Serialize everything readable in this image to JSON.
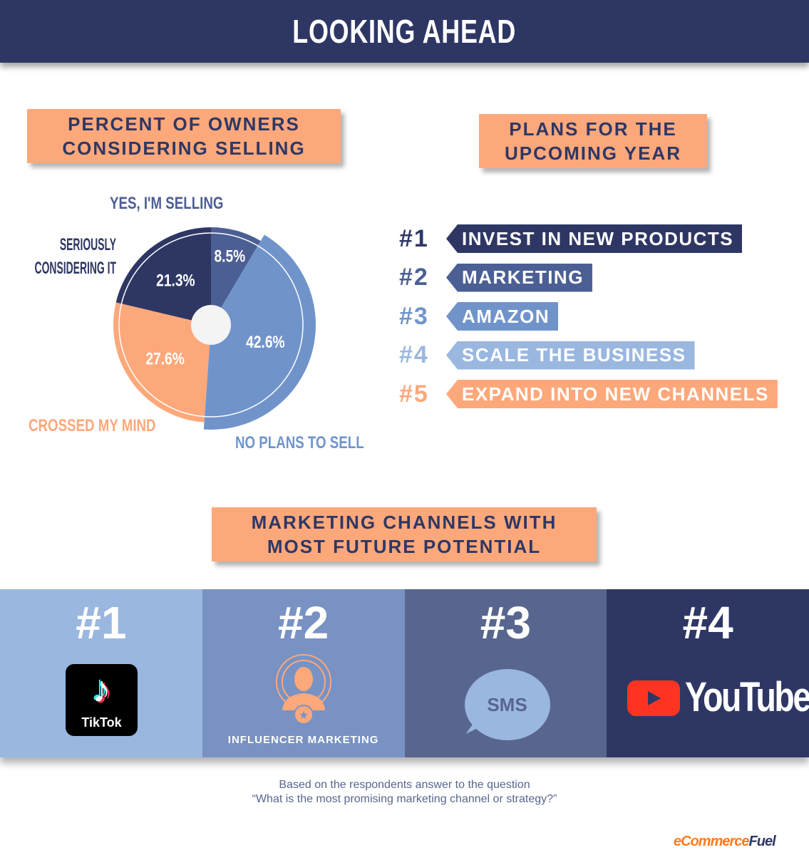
{
  "header": {
    "title": "LOOKING AHEAD"
  },
  "sections": {
    "owners_selling": "PERCENT OF OWNERS CONSIDERING SELLING",
    "plans": "PLANS FOR THE UPCOMING YEAR",
    "channels": "MARKETING CHANNELS WITH MOST FUTURE POTENTIAL"
  },
  "chart_data": {
    "type": "pie",
    "title": "PERCENT OF OWNERS CONSIDERING SELLING",
    "start": "12 o'clock, clockwise",
    "slices": [
      {
        "label": "YES, I'M SELLING",
        "value": 8.5,
        "display": "8.5%",
        "color": "#4c5f94"
      },
      {
        "label": "NO PLANS TO SELL",
        "value": 42.6,
        "display": "42.6%",
        "color": "#7094ca"
      },
      {
        "label": "CROSSED MY MIND",
        "value": 27.6,
        "display": "27.6%",
        "color": "#fda87b"
      },
      {
        "label": "SERIOUSLY CONSIDERING IT",
        "value": 21.3,
        "display": "21.3%",
        "color": "#2e3764"
      }
    ]
  },
  "plans": [
    {
      "rank": "#1",
      "label": "INVEST IN NEW PRODUCTS",
      "color": "#2e3764"
    },
    {
      "rank": "#2",
      "label": "MARKETING",
      "color": "#4c5f94"
    },
    {
      "rank": "#3",
      "label": "AMAZON",
      "color": "#7094ca"
    },
    {
      "rank": "#4",
      "label": "SCALE THE BUSINESS",
      "color": "#9ab7e0"
    },
    {
      "rank": "#5",
      "label": "EXPAND INTO NEW CHANNELS",
      "color": "#fda87b"
    }
  ],
  "channels": [
    {
      "rank": "#1",
      "name": "TikTok",
      "color": "#9ab7e0"
    },
    {
      "rank": "#2",
      "name": "INFLUENCER MARKETING",
      "color": "#7892c3"
    },
    {
      "rank": "#3",
      "name": "SMS",
      "color": "#58668f"
    },
    {
      "rank": "#4",
      "name": "YouTube",
      "color": "#2e3764"
    }
  ],
  "footnote": {
    "line1": "Based on the respondents answer to the question",
    "line2": "“What is the most promising marketing channel or strategy?”"
  },
  "logo": {
    "text_a": "eCommerce",
    "text_b": "Fuel"
  }
}
